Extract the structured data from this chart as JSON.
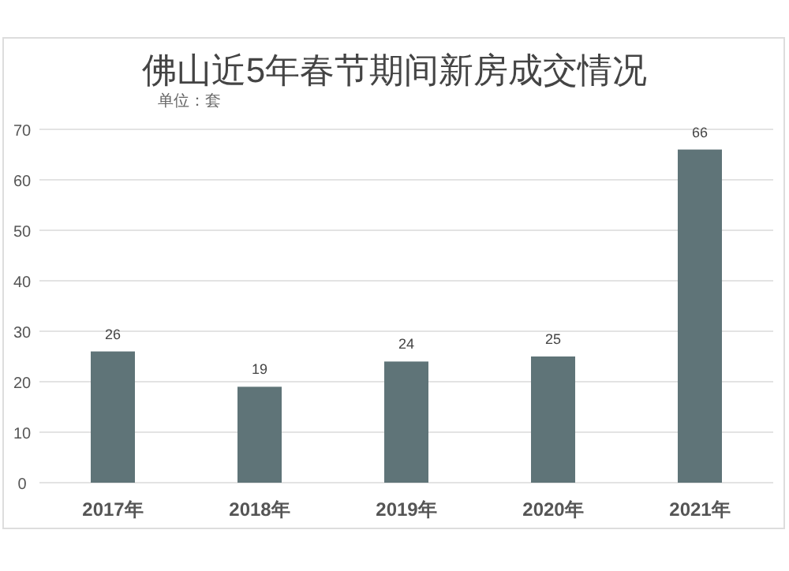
{
  "chart_data": {
    "type": "bar",
    "title": "佛山近5年春节期间新房成交情况",
    "annotations": [
      "单位：套"
    ],
    "categories": [
      "2017年",
      "2018年",
      "2019年",
      "2020年",
      "2021年"
    ],
    "values": [
      26,
      19,
      24,
      25,
      66
    ],
    "color": "#5f7478",
    "ylim": [
      0,
      70
    ],
    "yticks": [
      0,
      10,
      20,
      30,
      40,
      50,
      60,
      70
    ],
    "grid": "y",
    "data_labels": true
  }
}
